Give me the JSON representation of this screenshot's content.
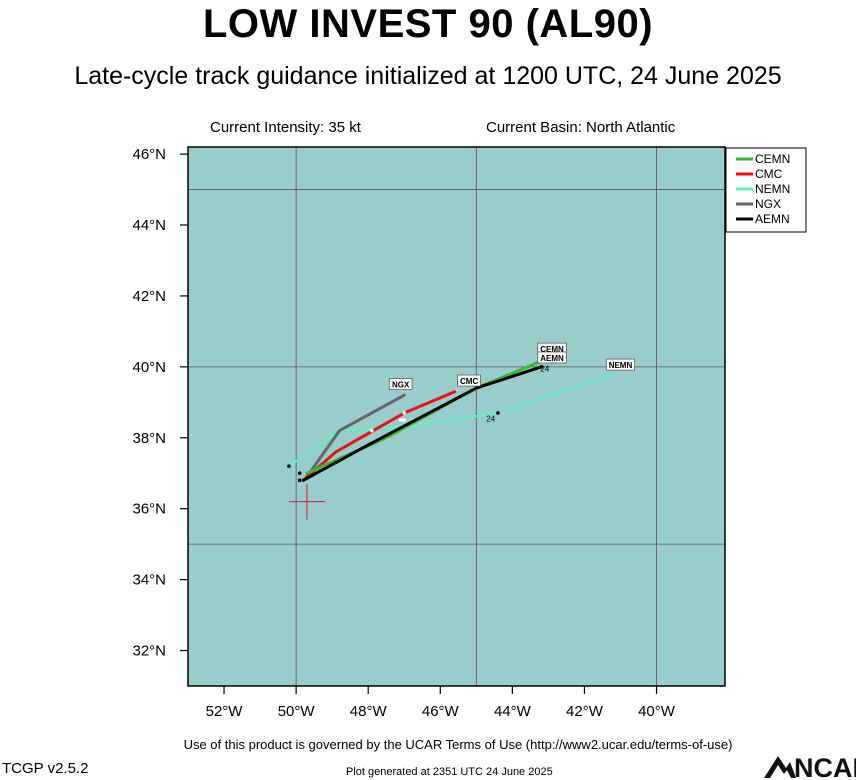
{
  "header": {
    "title": "LOW INVEST 90 (AL90)",
    "subtitle": "Late-cycle track guidance initialized at 1200 UTC, 24 June 2025",
    "intensity": "Current Intensity: 35 kt",
    "basin": "Current Basin: North Atlantic"
  },
  "footer": {
    "terms": "Use of this product is governed by the UCAR Terms of Use (http://www2.ucar.edu/terms-of-use)",
    "version": "TCGP v2.5.2",
    "generated": "Plot generated at 2351 UTC   24 June 2025",
    "logo_text": "NCAR"
  },
  "colors": {
    "ocean": "#99cccc",
    "CEMN": "#33bb33",
    "CMC": "#ee1111",
    "NEMN": "#66eebb",
    "NGX": "#666666",
    "AEMN": "#000000",
    "initial_position": "#cc2222"
  },
  "chart_data": {
    "type": "map",
    "xlim": [
      -53,
      -38.1
    ],
    "ylim": [
      31,
      46.2
    ],
    "x_ticks": [
      -52,
      -50,
      -48,
      -46,
      -44,
      -42,
      -40
    ],
    "x_tick_labels": [
      "52°W",
      "50°W",
      "48°W",
      "46°W",
      "44°W",
      "42°W",
      "40°W"
    ],
    "y_ticks": [
      32,
      34,
      36,
      38,
      40,
      42,
      44,
      46
    ],
    "y_tick_labels": [
      "32°N",
      "34°N",
      "36°N",
      "38°N",
      "40°N",
      "42°N",
      "44°N",
      "46°N"
    ],
    "gridlines_lon": [
      -50,
      -45,
      -40
    ],
    "gridlines_lat": [
      35,
      40,
      45
    ],
    "initial_position": {
      "lon": -49.7,
      "lat": 36.2
    },
    "legend_position": "top-right",
    "series": [
      {
        "name": "CEMN",
        "points": [
          [
            -49.7,
            37.0
          ],
          [
            -47.5,
            38.0
          ],
          [
            -45.0,
            39.4
          ],
          [
            -43.1,
            40.2
          ]
        ],
        "end_label": "CEMN",
        "label_at": [
          -42.9,
          40.5
        ],
        "hour_label": "24",
        "hour_label_at": [
          -43.0,
          40.27
        ]
      },
      {
        "name": "CMC",
        "points": [
          [
            -49.8,
            36.8
          ],
          [
            -48.9,
            37.6
          ],
          [
            -47.0,
            38.7
          ],
          [
            -45.6,
            39.3
          ]
        ],
        "end_label": "CMC",
        "label_at": [
          -45.2,
          39.6
        ],
        "dots": [
          [
            -47.0,
            38.7
          ],
          [
            -47.1,
            38.5
          ]
        ]
      },
      {
        "name": "NEMN",
        "points": [
          [
            -50.2,
            37.2
          ],
          [
            -48.8,
            38.2
          ],
          [
            -47.0,
            38.3
          ],
          [
            -44.4,
            38.7
          ],
          [
            -41.2,
            39.8
          ]
        ],
        "end_label": "NEMN",
        "label_at": [
          -41.0,
          40.05
        ],
        "hour_label": "24",
        "hour_label_at": [
          -44.6,
          38.55
        ],
        "dots": [
          [
            -50.2,
            37.2
          ],
          [
            -47.9,
            38.2
          ],
          [
            -47.0,
            38.5
          ],
          [
            -44.4,
            38.7
          ]
        ]
      },
      {
        "name": "NGX",
        "points": [
          [
            -49.7,
            36.9
          ],
          [
            -48.8,
            38.2
          ],
          [
            -47.0,
            39.2
          ]
        ],
        "end_label": "NGX",
        "label_at": [
          -47.1,
          39.5
        ]
      },
      {
        "name": "AEMN",
        "points": [
          [
            -49.8,
            36.8
          ],
          [
            -48.0,
            37.8
          ],
          [
            -45.0,
            39.4
          ],
          [
            -43.2,
            40.0
          ]
        ],
        "end_label": "AEMN",
        "label_at": [
          -42.9,
          40.25
        ],
        "hour_label": "24",
        "hour_label_at": [
          -43.1,
          39.95
        ],
        "dots": [
          [
            -49.9,
            37.0
          ],
          [
            -49.9,
            36.8
          ],
          [
            -43.2,
            40.0
          ]
        ]
      }
    ]
  }
}
